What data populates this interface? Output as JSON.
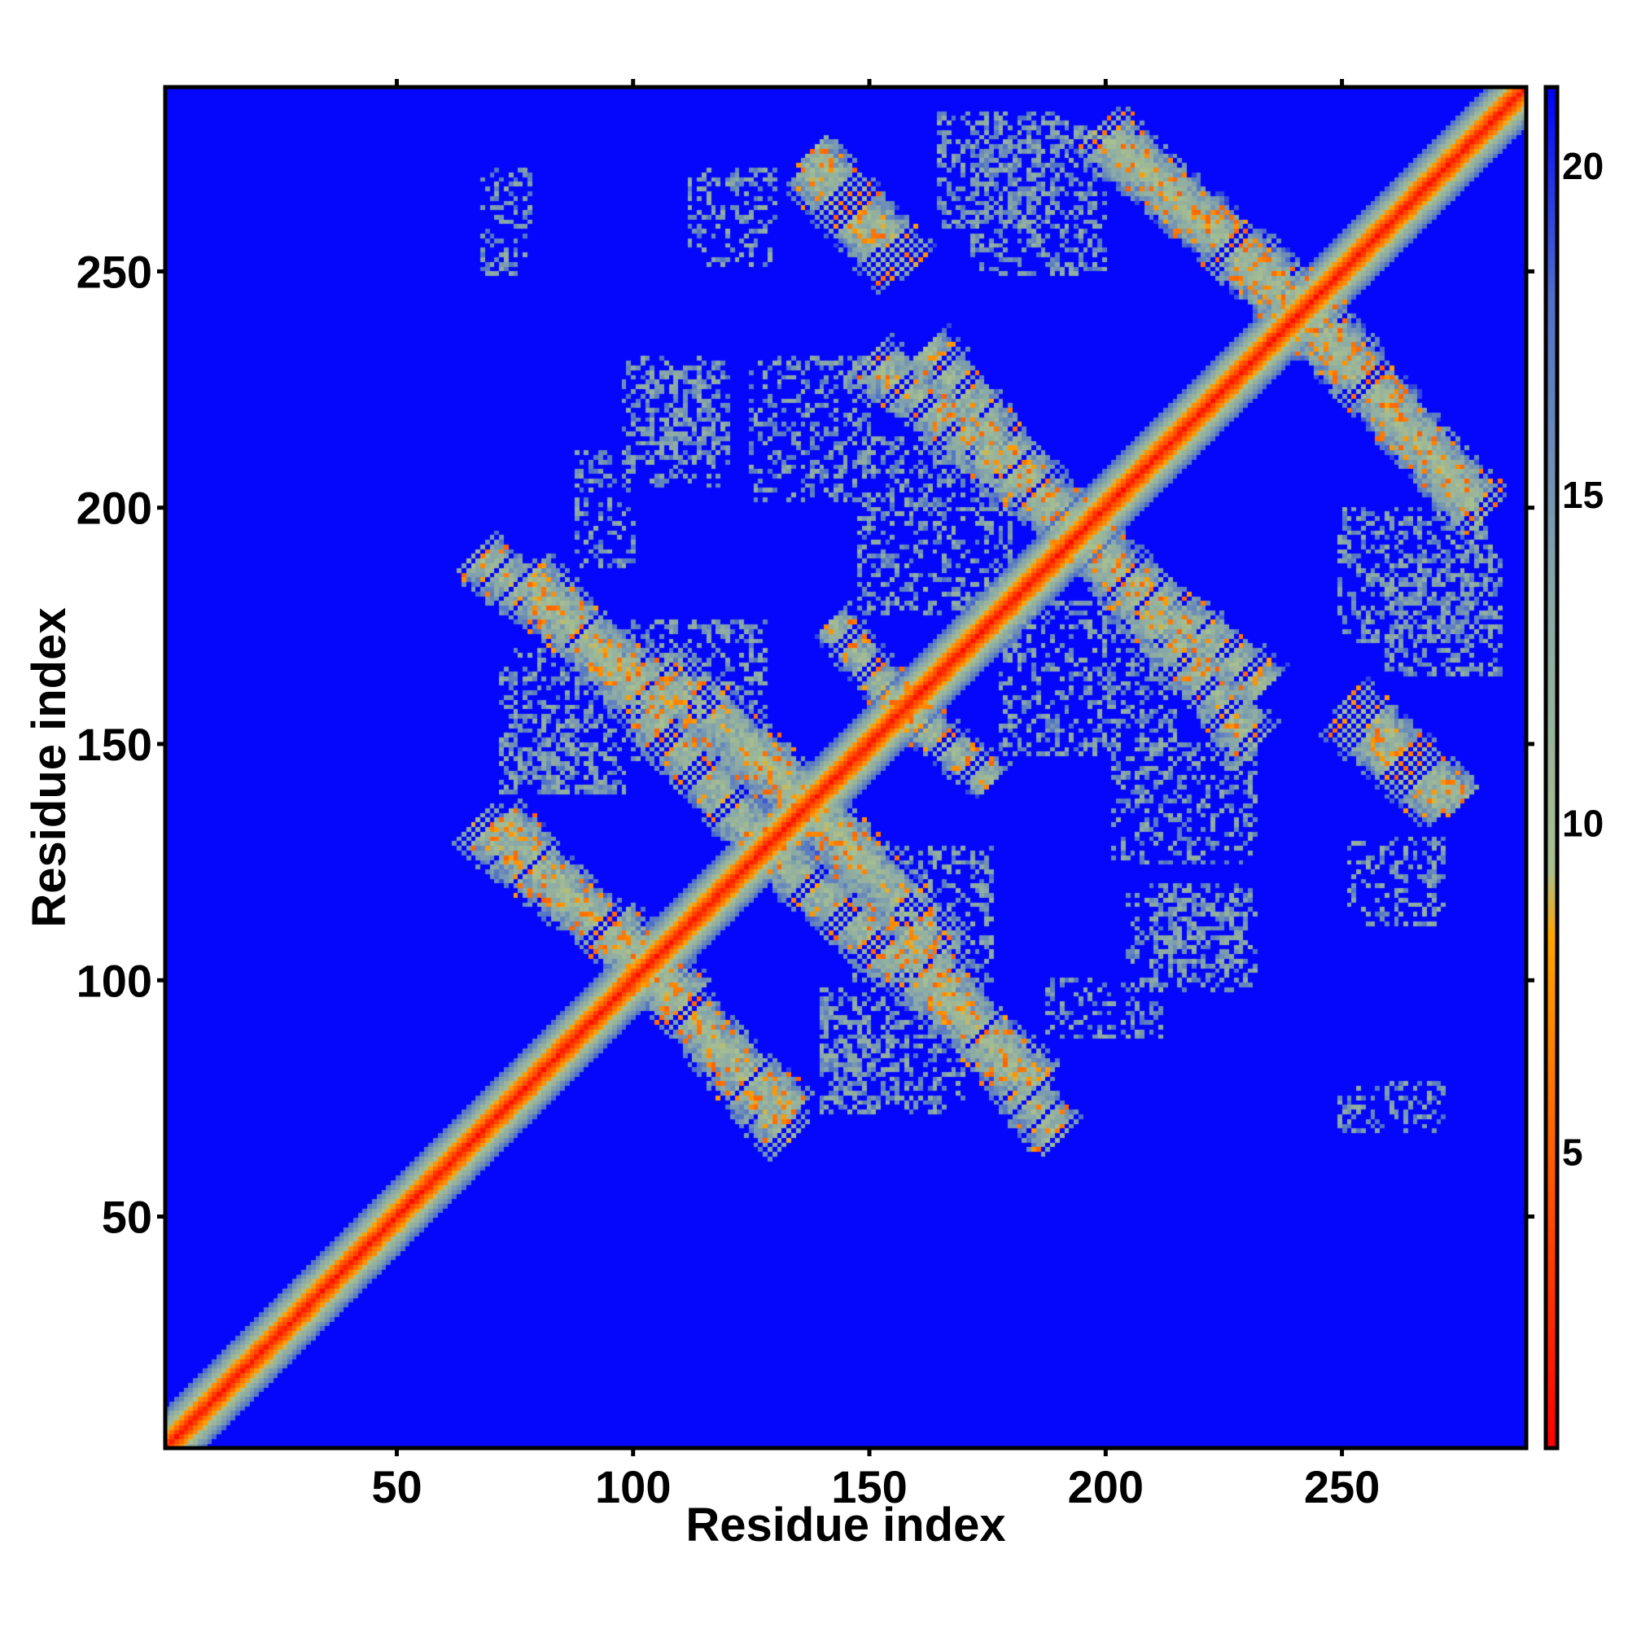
{
  "chart_data": {
    "type": "heatmap",
    "title": "",
    "xlabel": "Residue index",
    "ylabel": "Residue index",
    "xlim": [
      1,
      289
    ],
    "ylim": [
      1,
      289
    ],
    "xticks": [
      50,
      100,
      150,
      200,
      250
    ],
    "yticks": [
      50,
      100,
      150,
      200,
      250
    ],
    "colorbar": {
      "range": [
        0.5,
        21.2
      ],
      "ticks": [
        5,
        10,
        15,
        20
      ],
      "colors": [
        {
          "value": 0.5,
          "color": "#ff0000"
        },
        {
          "value": 4.5,
          "color": "#ff5500"
        },
        {
          "value": 8.3,
          "color": "#ffa500"
        },
        {
          "value": 9.3,
          "color": "#a9c08e"
        },
        {
          "value": 13.5,
          "color": "#88a8a8"
        },
        {
          "value": 18.0,
          "color": "#4f70c8"
        },
        {
          "value": 21.2,
          "color": "#0000ff"
        }
      ]
    },
    "background_value": 21,
    "background_color": "#0000ff",
    "diagonal": {
      "center_value": 1,
      "band_width_residues": 8
    },
    "contact_bands": [
      {
        "from": [
          66,
          190
        ],
        "to": [
          110,
          158
        ],
        "width": 9
      },
      {
        "from": [
          106,
          166
        ],
        "to": [
          150,
          124
        ],
        "width": 9
      },
      {
        "from": [
          66,
          133
        ],
        "to": [
          112,
          96
        ],
        "width": 9
      },
      {
        "from": [
          106,
          98
        ],
        "to": [
          134,
          72
        ],
        "width": 8
      },
      {
        "from": [
          128,
          128
        ],
        "to": [
          186,
          78
        ],
        "width": 9
      },
      {
        "from": [
          150,
          232
        ],
        "to": [
          194,
          196
        ],
        "width": 9
      },
      {
        "from": [
          192,
          196
        ],
        "to": [
          234,
          162
        ],
        "width": 9
      },
      {
        "from": [
          136,
          272
        ],
        "to": [
          156,
          250
        ],
        "width": 8
      },
      {
        "from": [
          198,
          280
        ],
        "to": [
          242,
          244
        ],
        "width": 9
      },
      {
        "from": [
          244,
          238
        ],
        "to": [
          280,
          200
        ],
        "width": 9
      },
      {
        "from": [
          154,
          160
        ],
        "to": [
          176,
          142
        ],
        "width": 7
      },
      {
        "from": [
          252,
          160
        ],
        "to": [
          276,
          138
        ],
        "width": 7
      }
    ],
    "sparse_patches": [
      {
        "x": [
          68,
          78
        ],
        "y": [
          250,
          272
        ]
      },
      {
        "x": [
          88,
          100
        ],
        "y": [
          188,
          212
        ]
      },
      {
        "x": [
          104,
          118
        ],
        "y": [
          205,
          230
        ]
      },
      {
        "x": [
          148,
          180
        ],
        "y": [
          178,
          215
        ]
      },
      {
        "x": [
          172,
          200
        ],
        "y": [
          250,
          282
        ]
      },
      {
        "x": [
          202,
          232
        ],
        "y": [
          125,
          150
        ]
      },
      {
        "x": [
          210,
          232
        ],
        "y": [
          98,
          120
        ]
      },
      {
        "x": [
          252,
          272
        ],
        "y": [
          112,
          130
        ]
      },
      {
        "x": [
          260,
          284
        ],
        "y": [
          165,
          190
        ]
      },
      {
        "x": [
          146,
          176
        ],
        "y": [
          100,
          128
        ]
      },
      {
        "x": [
          72,
          98
        ],
        "y": [
          140,
          170
        ]
      },
      {
        "x": [
          140,
          150
        ],
        "y": [
          72,
          96
        ]
      }
    ]
  }
}
